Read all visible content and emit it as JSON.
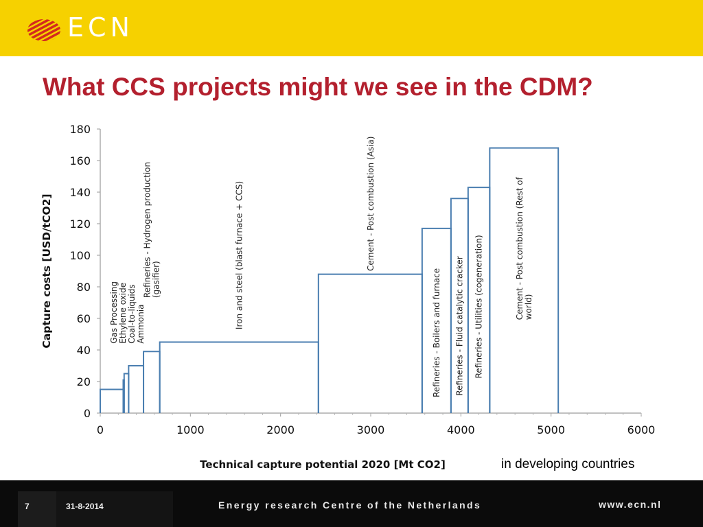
{
  "header": {
    "logo_text": "ECN",
    "brand_color": "#f6d100",
    "logo_color": "#d32a1e"
  },
  "slide": {
    "title": "What CCS projects might we see in the CDM?",
    "title_color": "#b3202e",
    "caption": "in developing countries"
  },
  "footer": {
    "slide_number": "7",
    "date": "31-8-2014",
    "organization": "Energy research Centre of the Netherlands",
    "url": "www.ecn.nl"
  },
  "chart_data": {
    "type": "bar",
    "subtype": "supply-curve",
    "xlabel": "Technical capture potential 2020 [Mt CO2]",
    "ylabel": "Capture  costs [USD/tCO2]",
    "xlim": [
      0,
      6000
    ],
    "ylim": [
      0,
      180
    ],
    "xticks": [
      "0",
      "1000",
      "2000",
      "3000",
      "4000",
      "5000",
      "6000"
    ],
    "yticks": [
      "0",
      "20",
      "40",
      "60",
      "80",
      "100",
      "120",
      "140",
      "160",
      "180"
    ],
    "grid": false,
    "line_color": "#4a7eb0",
    "steps": [
      {
        "x0": 0,
        "x1": 255,
        "y": 15
      },
      {
        "x0": 255,
        "x1": 265,
        "y": 21
      },
      {
        "x0": 265,
        "x1": 315,
        "y": 25
      },
      {
        "x0": 315,
        "x1": 480,
        "y": 30
      },
      {
        "x0": 480,
        "x1": 660,
        "y": 39
      },
      {
        "x0": 660,
        "x1": 2420,
        "y": 45
      },
      {
        "x0": 2420,
        "x1": 3570,
        "y": 88
      },
      {
        "x0": 3570,
        "x1": 3890,
        "y": 117
      },
      {
        "x0": 3890,
        "x1": 4080,
        "y": 136
      },
      {
        "x0": 4080,
        "x1": 4320,
        "y": 143
      },
      {
        "x0": 4320,
        "x1": 5080,
        "y": 168
      }
    ],
    "labels": [
      {
        "lines": [
          "Gas Processing",
          "Ethylene oxide",
          "Coal-to-liquids",
          "Ammonia"
        ],
        "x": 300,
        "y_bottom": 44
      },
      {
        "lines": [
          "Refineries - Hydrogen production",
          "(gasifier)"
        ],
        "x": 570,
        "y_bottom": 73
      },
      {
        "lines": [
          "Iron and steel (blast furnace + CCS)"
        ],
        "x": 1540,
        "y_bottom": 53
      },
      {
        "lines": [
          "Cement - Post combustion (Asia)"
        ],
        "x": 3000,
        "y_bottom": 90
      },
      {
        "lines": [
          "Refineries - Boilers and furnace"
        ],
        "x": 3730,
        "y_bottom": 10
      },
      {
        "lines": [
          "Refineries - Fluid catalytic cracker"
        ],
        "x": 3985,
        "y_bottom": 11
      },
      {
        "lines": [
          "Refineries - Utilities (cogeneration)"
        ],
        "x": 4200,
        "y_bottom": 22
      },
      {
        "lines": [
          "Cement - Post combustion (Rest of",
          "world)"
        ],
        "x": 4700,
        "y_bottom": 59
      }
    ]
  }
}
